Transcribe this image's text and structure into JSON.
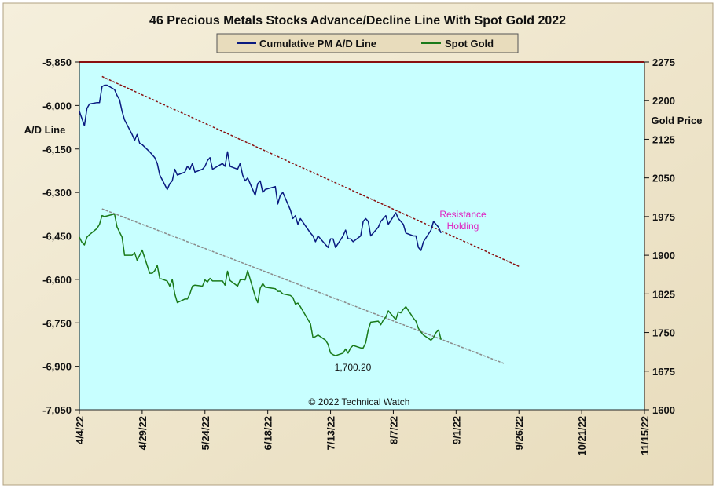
{
  "chart_data": {
    "type": "line",
    "title": "46 Precious Metals Stocks Advance/Decline Line With Spot Gold 2022",
    "ylabel_left": "A/D Line",
    "ylabel_right": "Gold Price",
    "copyright": "© 2022 Technical Watch",
    "annotation": "Resistance\nHolding",
    "low_label": "1,700.20",
    "legend": [
      "Cumulative PM A/D Line",
      "Spot Gold"
    ],
    "x_ticks": [
      "4/4/22",
      "4/29/22",
      "5/24/22",
      "6/18/22",
      "7/13/22",
      "8/7/22",
      "9/1/22",
      "9/26/22",
      "10/21/22",
      "11/15/22"
    ],
    "y_left": {
      "min": -7050,
      "max": -5850,
      "ticks": [
        -5850,
        -6000,
        -6150,
        -6300,
        -6450,
        -6600,
        -6750,
        -6900,
        -7050
      ]
    },
    "y_right": {
      "min": 1600,
      "max": 2275,
      "ticks": [
        2275,
        2200,
        2125,
        2050,
        1975,
        1900,
        1825,
        1750,
        1675,
        1600
      ]
    },
    "colors": {
      "ad_line": "#0a1a80",
      "gold": "#1a7a1a",
      "resistance": "#8a1010",
      "support": "#8a8a8a",
      "plot_bg": "#c8ffff",
      "frame_bg": "#f3ead2",
      "annotation": "#e020c0"
    },
    "series": [
      {
        "name": "Cumulative PM A/D Line",
        "axis": "left",
        "x": [
          "2022-04-04",
          "2022-04-06",
          "2022-04-07",
          "2022-04-08",
          "2022-04-11",
          "2022-04-12",
          "2022-04-13",
          "2022-04-14",
          "2022-04-15",
          "2022-04-18",
          "2022-04-19",
          "2022-04-20",
          "2022-04-21",
          "2022-04-22",
          "2022-04-25",
          "2022-04-26",
          "2022-04-27",
          "2022-04-28",
          "2022-04-29",
          "2022-05-02",
          "2022-05-03",
          "2022-05-04",
          "2022-05-05",
          "2022-05-06",
          "2022-05-09",
          "2022-05-10",
          "2022-05-11",
          "2022-05-12",
          "2022-05-13",
          "2022-05-16",
          "2022-05-17",
          "2022-05-18",
          "2022-05-19",
          "2022-05-20",
          "2022-05-23",
          "2022-05-24",
          "2022-05-25",
          "2022-05-26",
          "2022-05-27",
          "2022-05-31",
          "2022-06-01",
          "2022-06-02",
          "2022-06-03",
          "2022-06-06",
          "2022-06-07",
          "2022-06-08",
          "2022-06-09",
          "2022-06-10",
          "2022-06-13",
          "2022-06-14",
          "2022-06-15",
          "2022-06-16",
          "2022-06-17",
          "2022-06-21",
          "2022-06-22",
          "2022-06-23",
          "2022-06-24",
          "2022-06-27",
          "2022-06-28",
          "2022-06-29",
          "2022-06-30",
          "2022-07-01",
          "2022-07-05",
          "2022-07-06",
          "2022-07-07",
          "2022-07-08",
          "2022-07-11",
          "2022-07-12",
          "2022-07-13",
          "2022-07-14",
          "2022-07-15",
          "2022-07-18",
          "2022-07-19",
          "2022-07-20",
          "2022-07-21",
          "2022-07-22",
          "2022-07-25",
          "2022-07-26",
          "2022-07-27",
          "2022-07-28",
          "2022-07-29",
          "2022-08-01",
          "2022-08-02",
          "2022-08-03",
          "2022-08-04",
          "2022-08-05",
          "2022-08-08",
          "2022-08-09",
          "2022-08-10",
          "2022-08-11",
          "2022-08-12",
          "2022-08-15",
          "2022-08-16",
          "2022-08-17",
          "2022-08-18",
          "2022-08-19",
          "2022-08-22",
          "2022-08-23",
          "2022-08-24",
          "2022-08-25",
          "2022-08-26"
        ],
        "y": [
          -6020,
          -6070,
          -6010,
          -5995,
          -5990,
          -5990,
          -5935,
          -5930,
          -5930,
          -5945,
          -5965,
          -5980,
          -6020,
          -6050,
          -6100,
          -6120,
          -6100,
          -6130,
          -6135,
          -6160,
          -6170,
          -6180,
          -6200,
          -6240,
          -6290,
          -6270,
          -6260,
          -6220,
          -6240,
          -6230,
          -6210,
          -6220,
          -6200,
          -6230,
          -6220,
          -6210,
          -6190,
          -6180,
          -6220,
          -6200,
          -6210,
          -6160,
          -6210,
          -6220,
          -6200,
          -6240,
          -6260,
          -6250,
          -6310,
          -6270,
          -6260,
          -6300,
          -6290,
          -6280,
          -6340,
          -6310,
          -6300,
          -6360,
          -6390,
          -6380,
          -6410,
          -6390,
          -6440,
          -6450,
          -6470,
          -6450,
          -6480,
          -6490,
          -6460,
          -6460,
          -6490,
          -6450,
          -6430,
          -6460,
          -6460,
          -6470,
          -6450,
          -6400,
          -6390,
          -6400,
          -6450,
          -6420,
          -6400,
          -6390,
          -6380,
          -6410,
          -6370,
          -6390,
          -6400,
          -6410,
          -6440,
          -6450,
          -6450,
          -6490,
          -6500,
          -6470,
          -6430,
          -6400,
          -6410,
          -6420,
          -6440
        ]
      },
      {
        "name": "Spot Gold",
        "axis": "right",
        "x": [
          "2022-04-04",
          "2022-04-05",
          "2022-04-06",
          "2022-04-07",
          "2022-04-08",
          "2022-04-11",
          "2022-04-12",
          "2022-04-13",
          "2022-04-14",
          "2022-04-18",
          "2022-04-19",
          "2022-04-20",
          "2022-04-21",
          "2022-04-22",
          "2022-04-25",
          "2022-04-26",
          "2022-04-27",
          "2022-04-28",
          "2022-04-29",
          "2022-05-02",
          "2022-05-03",
          "2022-05-04",
          "2022-05-05",
          "2022-05-06",
          "2022-05-09",
          "2022-05-10",
          "2022-05-11",
          "2022-05-12",
          "2022-05-13",
          "2022-05-16",
          "2022-05-17",
          "2022-05-18",
          "2022-05-19",
          "2022-05-20",
          "2022-05-23",
          "2022-05-24",
          "2022-05-25",
          "2022-05-26",
          "2022-05-27",
          "2022-05-31",
          "2022-06-01",
          "2022-06-02",
          "2022-06-03",
          "2022-06-06",
          "2022-06-07",
          "2022-06-08",
          "2022-06-09",
          "2022-06-10",
          "2022-06-13",
          "2022-06-14",
          "2022-06-15",
          "2022-06-16",
          "2022-06-17",
          "2022-06-21",
          "2022-06-22",
          "2022-06-23",
          "2022-06-24",
          "2022-06-27",
          "2022-06-28",
          "2022-06-29",
          "2022-06-30",
          "2022-07-01",
          "2022-07-05",
          "2022-07-06",
          "2022-07-07",
          "2022-07-08",
          "2022-07-11",
          "2022-07-12",
          "2022-07-13",
          "2022-07-14",
          "2022-07-15",
          "2022-07-18",
          "2022-07-19",
          "2022-07-20",
          "2022-07-21",
          "2022-07-22",
          "2022-07-25",
          "2022-07-26",
          "2022-07-27",
          "2022-07-28",
          "2022-07-29",
          "2022-08-01",
          "2022-08-02",
          "2022-08-03",
          "2022-08-04",
          "2022-08-05",
          "2022-08-08",
          "2022-08-09",
          "2022-08-10",
          "2022-08-11",
          "2022-08-12",
          "2022-08-15",
          "2022-08-16",
          "2022-08-17",
          "2022-08-18",
          "2022-08-19",
          "2022-08-22",
          "2022-08-23",
          "2022-08-24",
          "2022-08-25",
          "2022-08-26"
        ],
        "y": [
          1935,
          1925,
          1920,
          1935,
          1940,
          1952,
          1960,
          1977,
          1975,
          1980,
          1955,
          1945,
          1935,
          1900,
          1900,
          1905,
          1890,
          1900,
          1910,
          1865,
          1865,
          1870,
          1880,
          1855,
          1850,
          1840,
          1853,
          1825,
          1808,
          1815,
          1815,
          1825,
          1840,
          1842,
          1840,
          1852,
          1848,
          1855,
          1850,
          1850,
          1842,
          1869,
          1851,
          1840,
          1852,
          1853,
          1852,
          1870,
          1820,
          1808,
          1836,
          1845,
          1838,
          1835,
          1830,
          1830,
          1825,
          1822,
          1818,
          1805,
          1807,
          1800,
          1767,
          1740,
          1742,
          1745,
          1735,
          1727,
          1710,
          1707,
          1705,
          1710,
          1718,
          1710,
          1720,
          1725,
          1720,
          1720,
          1730,
          1755,
          1770,
          1772,
          1765,
          1774,
          1780,
          1792,
          1775,
          1790,
          1788,
          1795,
          1800,
          1778,
          1772,
          1758,
          1751,
          1745,
          1735,
          1740,
          1750,
          1755,
          1736
        ]
      }
    ],
    "trendlines": [
      {
        "name": "resistance",
        "axis": "left",
        "x": [
          "2022-04-13",
          "2022-09-26"
        ],
        "y": [
          -5900,
          -6555
        ]
      },
      {
        "name": "support",
        "axis": "right",
        "x": [
          "2022-04-13",
          "2022-09-20"
        ],
        "y": [
          1990,
          1690
        ]
      }
    ]
  }
}
